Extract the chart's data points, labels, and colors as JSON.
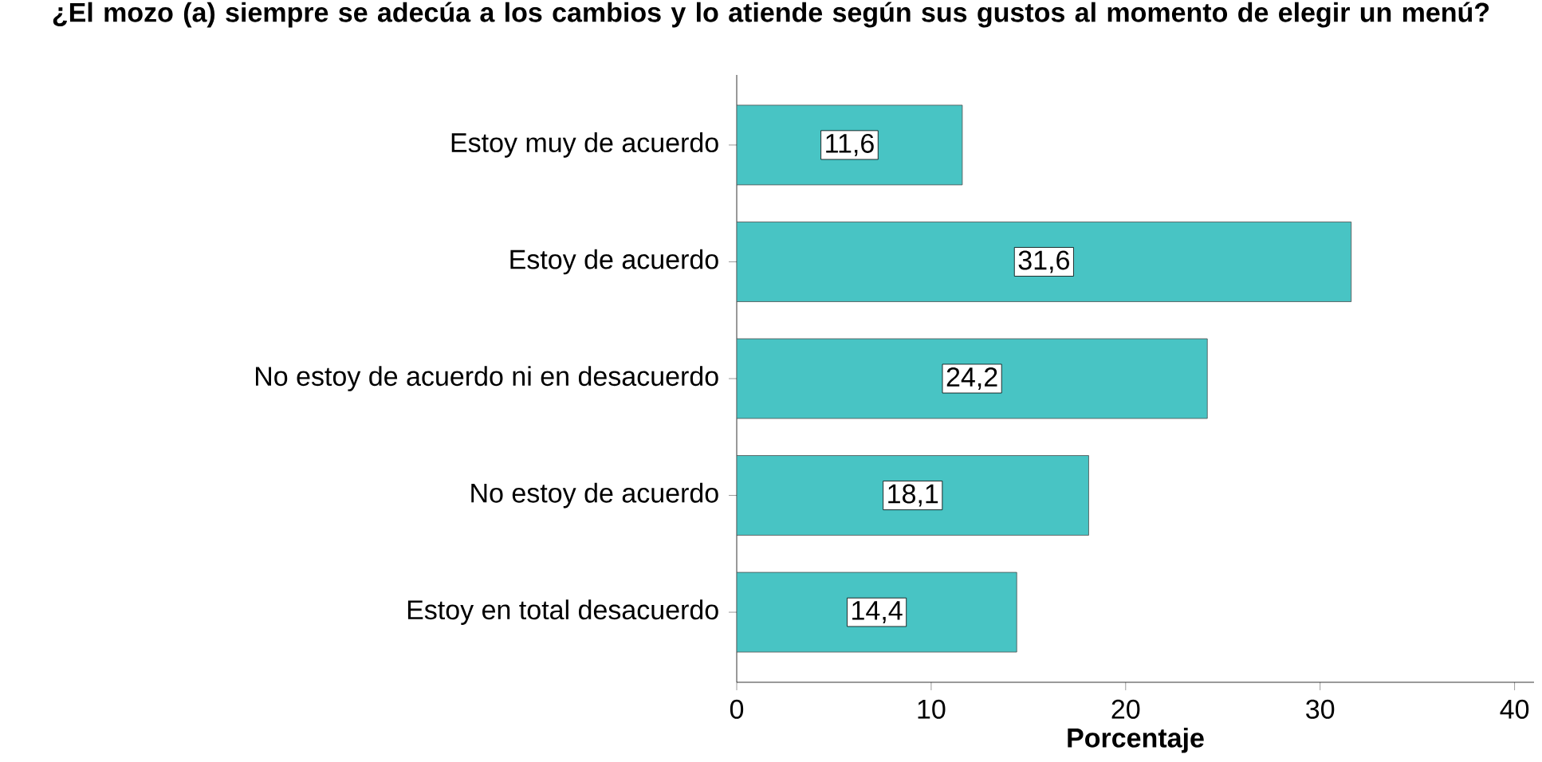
{
  "chart_data": {
    "type": "bar",
    "orientation": "horizontal",
    "title": "¿El mozo (a) siempre se adecúa a los cambios y lo atiende según sus gustos al momento de elegir un menú?",
    "xlabel": "Porcentaje",
    "categories": [
      "Estoy muy de acuerdo",
      "Estoy de acuerdo",
      "No estoy de acuerdo ni en desacuerdo",
      "No estoy de acuerdo",
      "Estoy en total desacuerdo"
    ],
    "values": [
      11.6,
      31.6,
      24.2,
      18.1,
      14.4
    ],
    "value_labels": [
      "11,6",
      "31,6",
      "24,2",
      "18,1",
      "14,4"
    ],
    "color": "#48c4c4",
    "xlim": [
      0,
      41
    ],
    "xticks": [
      0,
      10,
      20,
      30,
      40
    ],
    "grid": false
  }
}
